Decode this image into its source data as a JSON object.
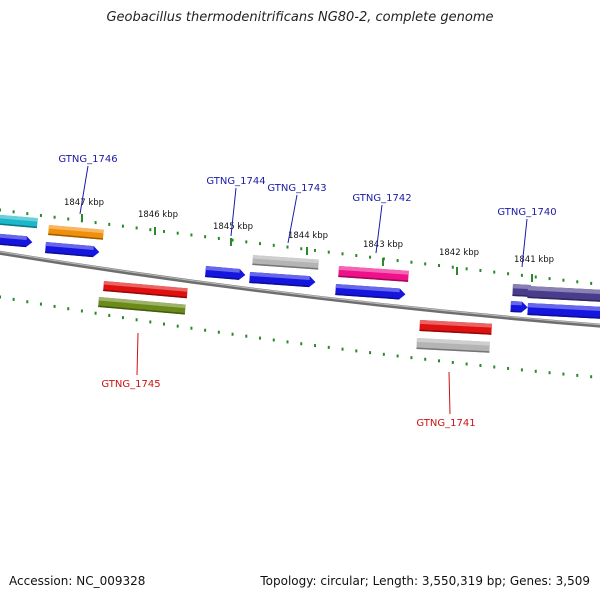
{
  "title": "Geobacillus thermodenitrificans NG80-2, complete genome",
  "footer": {
    "accession": "Accession: NC_009328",
    "topology": "Topology: circular; Length: 3,550,319 bp; Genes: 3,509"
  },
  "colors": {
    "tick": "#2a8a2a",
    "backbone": "#7a7a7a",
    "label_forward": "#1a1aa8",
    "label_reverse": "#cc1111",
    "cds": "#1515e0"
  },
  "scale": {
    "unit": "kbp",
    "ticks": [
      {
        "kbp": 1841,
        "label": "1841 kbp"
      },
      {
        "kbp": 1842,
        "label": "1842 kbp"
      },
      {
        "kbp": 1843,
        "label": "1843 kbp"
      },
      {
        "kbp": 1844,
        "label": "1844 kbp"
      },
      {
        "kbp": 1845,
        "label": "1845 kbp"
      },
      {
        "kbp": 1846,
        "label": "1846 kbp"
      },
      {
        "kbp": 1847,
        "label": "1847 kbp"
      }
    ]
  },
  "genes": [
    {
      "name": "GTNG_1746",
      "strand": "forward",
      "feature_color": "#f0900a",
      "cds_color": "#1515e0"
    },
    {
      "name": "GTNG_1745",
      "strand": "reverse",
      "feature_color": "#e01010",
      "cds_color": "#6a8a1a"
    },
    {
      "name": "GTNG_1744",
      "strand": "forward",
      "feature_color": "#1515e0",
      "cds_color": "#1515e0"
    },
    {
      "name": "GTNG_1743",
      "strand": "forward",
      "feature_color": "#b4b4b4",
      "cds_color": "#1515e0"
    },
    {
      "name": "GTNG_1742",
      "strand": "forward",
      "feature_color": "#f0108a",
      "cds_color": "#1515e0"
    },
    {
      "name": "GTNG_1741",
      "strand": "reverse",
      "feature_color": "#e01010",
      "cds_color": "#b4b4b4"
    },
    {
      "name": "GTNG_1740",
      "strand": "forward",
      "feature_color": "#4a3c8c",
      "cds_color": "#1515e0"
    }
  ]
}
